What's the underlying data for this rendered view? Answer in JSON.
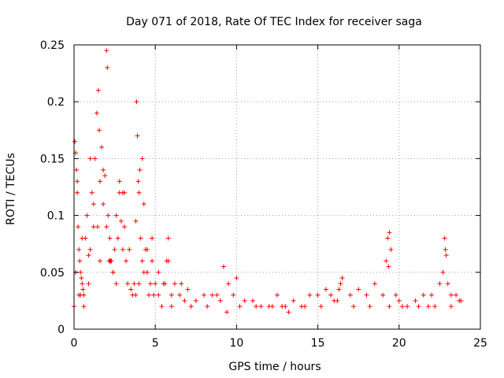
{
  "chart_data": {
    "type": "scatter",
    "title": "Day 071 of 2018, Rate Of TEC Index for receiver saga",
    "xlabel": "GPS time / hours",
    "ylabel": "ROTI / TECUs",
    "xlim": [
      0,
      25
    ],
    "ylim": [
      0,
      0.25
    ],
    "xticks": [
      0,
      5,
      10,
      15,
      20,
      25
    ],
    "xtick_labels": [
      "0",
      "5",
      "10",
      "15",
      "20",
      "25"
    ],
    "yticks": [
      0,
      0.05,
      0.1,
      0.15,
      0.2,
      0.25
    ],
    "ytick_labels": [
      "0",
      "0.05",
      "0.1",
      "0.15",
      "0.2",
      "0.25"
    ],
    "grid": true,
    "marker": "+",
    "color": "#ff0000",
    "series": [
      {
        "name": "ROTI",
        "x": [
          0.05,
          0.1,
          0.15,
          0.2,
          0.25,
          0.3,
          0.35,
          0.4,
          0.45,
          0.5,
          0.55,
          0.6,
          0.7,
          0.8,
          0.9,
          1.0,
          1.1,
          1.2,
          1.3,
          1.4,
          1.5,
          1.55,
          1.6,
          1.7,
          1.8,
          1.9,
          2.0,
          2.05,
          2.1,
          2.15,
          2.2,
          2.3,
          2.4,
          2.5,
          2.6,
          2.7,
          2.8,
          2.9,
          3.0,
          3.1,
          3.2,
          3.3,
          3.5,
          3.7,
          3.8,
          3.85,
          3.9,
          3.95,
          4.0,
          4.1,
          4.2,
          4.3,
          4.4,
          4.5,
          4.6,
          4.7,
          4.8,
          4.9,
          5.0,
          5.2,
          5.4,
          5.6,
          5.7,
          5.8,
          6.0,
          6.2,
          6.5,
          6.8,
          7.0,
          7.5,
          8.0,
          8.5,
          9.0,
          9.2,
          9.5,
          10.0,
          10.5,
          11.0,
          11.5,
          12.0,
          12.5,
          13.0,
          13.5,
          14.0,
          14.5,
          15.0,
          15.5,
          16.0,
          16.3,
          16.5,
          17.0,
          17.5,
          18.0,
          18.5,
          19.0,
          19.2,
          19.3,
          19.4,
          19.5,
          19.8,
          20.0,
          20.5,
          21.0,
          21.5,
          22.0,
          22.5,
          22.7,
          22.8,
          22.9,
          23.0,
          23.2,
          23.5,
          23.7,
          0.1,
          0.3,
          0.6,
          0.9,
          1.2,
          1.6,
          2.0,
          2.2,
          2.6,
          3.0,
          3.4,
          3.8,
          4.0,
          4.2,
          4.5,
          4.8,
          5.5,
          6.0,
          7.2,
          8.2,
          9.4,
          10.2,
          11.2,
          12.2,
          13.2,
          14.2,
          15.2,
          16.2,
          17.2,
          18.2,
          19.4,
          20.2,
          21.2,
          22.2,
          23.2,
          0.2,
          0.5,
          1.0,
          1.8,
          2.4,
          2.8,
          3.6,
          4.3,
          5.2,
          6.6,
          8.8,
          12.8,
          16.4,
          19.35,
          22.85,
          0.0,
          0.4,
          1.45,
          2.25,
          3.1,
          4.05,
          5.8,
          9.8,
          15.8,
          21.8,
          23.8
        ],
        "y": [
          0.165,
          0.155,
          0.14,
          0.12,
          0.09,
          0.07,
          0.06,
          0.05,
          0.045,
          0.04,
          0.035,
          0.03,
          0.08,
          0.1,
          0.065,
          0.07,
          0.12,
          0.09,
          0.15,
          0.19,
          0.21,
          0.175,
          0.13,
          0.16,
          0.11,
          0.135,
          0.245,
          0.23,
          0.1,
          0.06,
          0.08,
          0.06,
          0.05,
          0.07,
          0.1,
          0.08,
          0.12,
          0.095,
          0.07,
          0.09,
          0.06,
          0.04,
          0.035,
          0.04,
          0.095,
          0.2,
          0.17,
          0.13,
          0.12,
          0.08,
          0.06,
          0.05,
          0.07,
          0.05,
          0.03,
          0.04,
          0.06,
          0.03,
          0.04,
          0.03,
          0.02,
          0.04,
          0.06,
          0.08,
          0.03,
          0.04,
          0.03,
          0.025,
          0.035,
          0.025,
          0.03,
          0.03,
          0.025,
          0.055,
          0.04,
          0.045,
          0.025,
          0.025,
          0.02,
          0.02,
          0.03,
          0.02,
          0.025,
          0.02,
          0.03,
          0.03,
          0.035,
          0.025,
          0.035,
          0.045,
          0.03,
          0.035,
          0.03,
          0.04,
          0.03,
          0.06,
          0.08,
          0.085,
          0.07,
          0.03,
          0.025,
          0.02,
          0.025,
          0.03,
          0.03,
          0.04,
          0.05,
          0.08,
          0.065,
          0.04,
          0.03,
          0.03,
          0.025,
          0.05,
          0.03,
          0.02,
          0.04,
          0.11,
          0.06,
          0.09,
          0.06,
          0.04,
          0.12,
          0.07,
          0.03,
          0.04,
          0.15,
          0.07,
          0.08,
          0.04,
          0.02,
          0.02,
          0.02,
          0.015,
          0.02,
          0.02,
          0.02,
          0.015,
          0.02,
          0.02,
          0.025,
          0.02,
          0.02,
          0.02,
          0.02,
          0.02,
          0.02,
          0.02,
          0.13,
          0.08,
          0.15,
          0.14,
          0.05,
          0.13,
          0.03,
          0.11,
          0.05,
          0.04,
          0.03,
          0.02,
          0.04,
          0.055,
          0.07,
          0.02,
          0.03,
          0.09,
          0.06,
          0.12,
          0.14,
          0.06,
          0.03,
          0.03,
          0.02,
          0.025
        ]
      }
    ]
  }
}
